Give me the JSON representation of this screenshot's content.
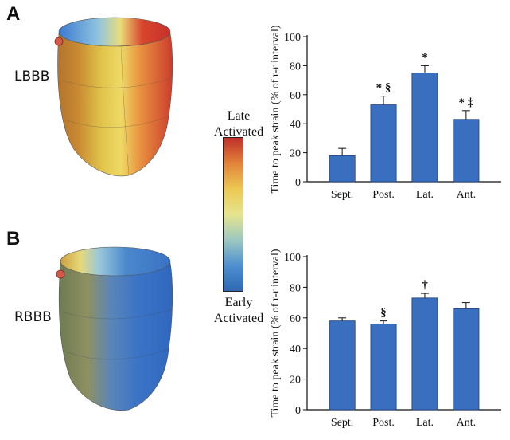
{
  "panels": {
    "a": {
      "letter": "A",
      "condition": "LBBB"
    },
    "b": {
      "letter": "B",
      "condition": "RBBB"
    }
  },
  "colorbar": {
    "top_line1": "Late",
    "top_line2": "Activated",
    "bottom_line1": "Early",
    "bottom_line2": "Activated",
    "colors": [
      "#c0302a",
      "#e2833a",
      "#ecc853",
      "#e6e48e",
      "#9cc8c0",
      "#4f90d0",
      "#2f68b4"
    ]
  },
  "chart_data": [
    {
      "type": "bar",
      "panel": "A",
      "ylabel": "Time to peak strain (% of r-r interval)",
      "categories": [
        "Sept.",
        "Post.",
        "Lat.",
        "Ant."
      ],
      "values": [
        18,
        53,
        75,
        43
      ],
      "errors": [
        5,
        6,
        5,
        6
      ],
      "annotations": [
        "",
        "* §",
        "*",
        "* ‡"
      ],
      "ylim": [
        0,
        100
      ],
      "yticks": [
        0,
        20,
        40,
        60,
        80,
        100
      ],
      "bar_color": "#3a6fc0"
    },
    {
      "type": "bar",
      "panel": "B",
      "ylabel": "Time to peak strain (% of r-r interval)",
      "categories": [
        "Sept.",
        "Post.",
        "Lat.",
        "Ant."
      ],
      "values": [
        58,
        56,
        73,
        66
      ],
      "errors": [
        2,
        2,
        3,
        4
      ],
      "annotations": [
        "",
        "§",
        "†",
        ""
      ],
      "ylim": [
        0,
        100
      ],
      "yticks": [
        0,
        20,
        40,
        60,
        80,
        100
      ],
      "bar_color": "#3a6fc0"
    }
  ]
}
